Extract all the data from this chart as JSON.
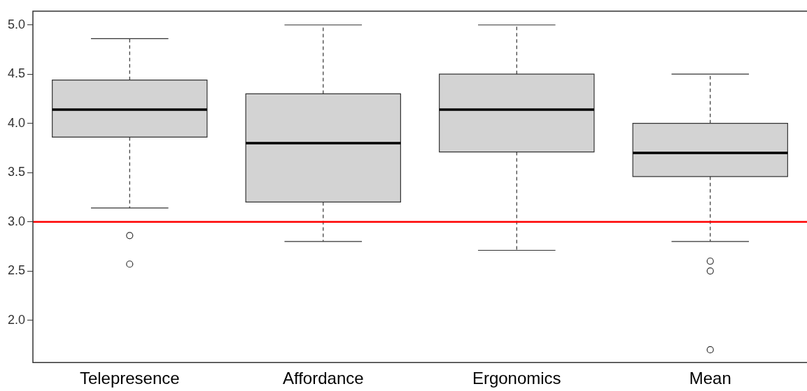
{
  "chart_data": {
    "type": "box",
    "categories": [
      "Telepresence",
      "Affordance",
      "Ergonomics",
      "Mean"
    ],
    "boxes": [
      {
        "low": 3.14,
        "q1": 3.86,
        "median": 4.14,
        "q3": 4.44,
        "high": 4.86,
        "outliers": [
          2.86,
          2.57
        ]
      },
      {
        "low": 2.8,
        "q1": 3.2,
        "median": 3.8,
        "q3": 4.3,
        "high": 5.0
      },
      {
        "low": 2.71,
        "q1": 3.71,
        "median": 4.14,
        "q3": 4.5,
        "high": 5.0
      },
      {
        "low": 2.8,
        "q1": 3.46,
        "median": 3.7,
        "q3": 4.0,
        "high": 4.5,
        "outliers": [
          2.6,
          2.5,
          1.7
        ]
      }
    ],
    "color": "#d3d3d3",
    "ylim": [
      1.57,
      5.14
    ],
    "yticks": [
      {
        "value": 2,
        "label": "2.0"
      },
      {
        "value": 2.5,
        "label": "2.5"
      },
      {
        "value": 3,
        "label": "3.0"
      },
      {
        "value": 3.5,
        "label": "3.5"
      },
      {
        "value": 4,
        "label": "4.0"
      },
      {
        "value": 4.5,
        "label": "4.5"
      },
      {
        "value": 5,
        "label": "5.0"
      }
    ],
    "ref_lines": [
      {
        "axis": "y",
        "value": 3,
        "color": "#ff0000"
      }
    ],
    "grid": false,
    "legend": false,
    "marker": "circle"
  }
}
